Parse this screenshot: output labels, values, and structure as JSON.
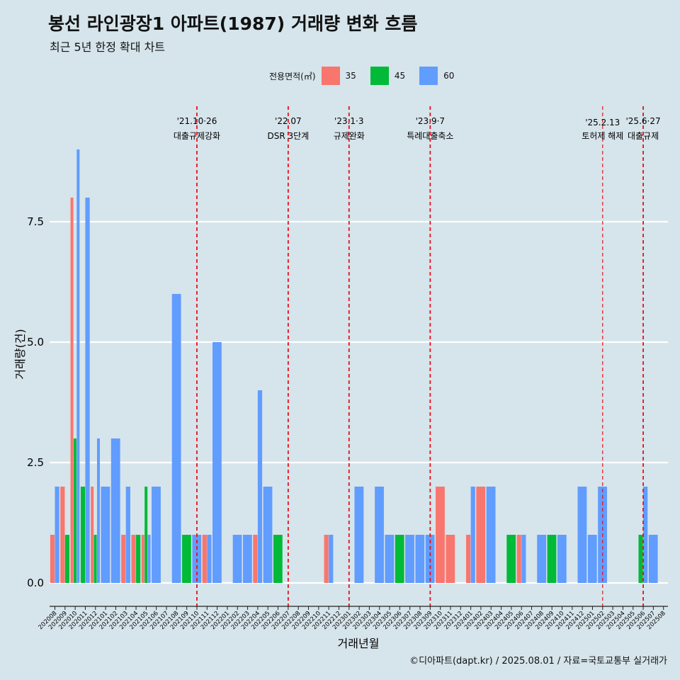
{
  "title": "봉선 라인광장1 아파트(1987) 거래량 변화 흐름",
  "subtitle": "최근 5년 한정 확대 차트",
  "caption": "©디아파트(dapt.kr) / 2025.08.01 / 자료=국토교통부 실거래가",
  "legend": {
    "title": "전용면적(㎡)",
    "items": [
      {
        "label": "35",
        "color": "#f8766d"
      },
      {
        "label": "45",
        "color": "#00ba38"
      },
      {
        "label": "60",
        "color": "#619cff"
      }
    ]
  },
  "chart_data": {
    "type": "bar",
    "title": "봉선 라인광장1 아파트(1987) 거래량 변화 흐름",
    "subtitle": "최근 5년 한정 확대 차트",
    "xlabel": "거래년월",
    "ylabel": "거래량(건)",
    "ylim": [
      -0.5,
      9.2
    ],
    "yticks": [
      0.0,
      2.5,
      5.0,
      7.5
    ],
    "ytick_labels": [
      "0.0",
      "2.5",
      "5.0",
      "7.5"
    ],
    "grid": "horizontal major lines",
    "legend_position": "top",
    "categories": [
      "202008",
      "202009",
      "202010",
      "202011",
      "202012",
      "202101",
      "202102",
      "202103",
      "202104",
      "202105",
      "202106",
      "202107",
      "202108",
      "202109",
      "202110",
      "202111",
      "202112",
      "202201",
      "202202",
      "202203",
      "202204",
      "202205",
      "202206",
      "202207",
      "202208",
      "202209",
      "202210",
      "202211",
      "202212",
      "202301",
      "202302",
      "202303",
      "202304",
      "202305",
      "202306",
      "202307",
      "202308",
      "202309",
      "202310",
      "202311",
      "202312",
      "202401",
      "202402",
      "202403",
      "202404",
      "202405",
      "202406",
      "202407",
      "202408",
      "202409",
      "202410",
      "202411",
      "202412",
      "202501",
      "202502",
      "202503",
      "202504",
      "202505",
      "202506",
      "202507",
      "202508"
    ],
    "series": [
      {
        "name": "35",
        "color": "#f8766d",
        "values": [
          1,
          2,
          8,
          0,
          2,
          0,
          0,
          1,
          1,
          1,
          0,
          0,
          0,
          0,
          0,
          1,
          0,
          0,
          0,
          0,
          1,
          0,
          0,
          0,
          0,
          0,
          0,
          1,
          0,
          0,
          0,
          0,
          0,
          0,
          0,
          0,
          0,
          0,
          2,
          1,
          0,
          1,
          2,
          0,
          0,
          0,
          1,
          0,
          0,
          0,
          0,
          0,
          0,
          0,
          0,
          0,
          0,
          0,
          0,
          0,
          0
        ]
      },
      {
        "name": "45",
        "color": "#00ba38",
        "values": [
          0,
          1,
          3,
          2,
          1,
          0,
          0,
          0,
          1,
          2,
          0,
          0,
          0,
          1,
          0,
          0,
          0,
          0,
          0,
          0,
          0,
          0,
          1,
          0,
          0,
          0,
          0,
          0,
          0,
          0,
          0,
          0,
          0,
          0,
          1,
          0,
          0,
          0,
          0,
          0,
          0,
          0,
          0,
          0,
          0,
          1,
          0,
          0,
          0,
          1,
          0,
          0,
          0,
          0,
          0,
          0,
          0,
          0,
          1,
          0,
          0
        ]
      },
      {
        "name": "60",
        "color": "#619cff",
        "values": [
          2,
          0,
          9,
          8,
          3,
          2,
          3,
          2,
          0,
          1,
          2,
          0,
          6,
          0,
          1,
          1,
          5,
          0,
          1,
          1,
          4,
          2,
          0,
          0,
          0,
          0,
          0,
          1,
          0,
          0,
          2,
          0,
          2,
          1,
          0,
          1,
          1,
          1,
          0,
          0,
          0,
          2,
          0,
          2,
          0,
          0,
          1,
          0,
          1,
          0,
          1,
          0,
          2,
          1,
          2,
          0,
          0,
          0,
          2,
          1,
          0
        ]
      }
    ],
    "events": [
      {
        "at": "202110",
        "date": "'21.10·26",
        "label": "대출규제강화"
      },
      {
        "at": "202207",
        "date": "'22.07",
        "label": "DSR 3단계"
      },
      {
        "at": "202301",
        "date": "'23.1·3",
        "label": "규제완화"
      },
      {
        "at": "202309",
        "date": "'23.9·7",
        "label": "특례대출축소"
      },
      {
        "at": "202502",
        "date": "'25.2.13",
        "label": "토허제 해제"
      },
      {
        "at": "202506",
        "date": "'25.6·27",
        "label": "대출규제"
      }
    ]
  }
}
